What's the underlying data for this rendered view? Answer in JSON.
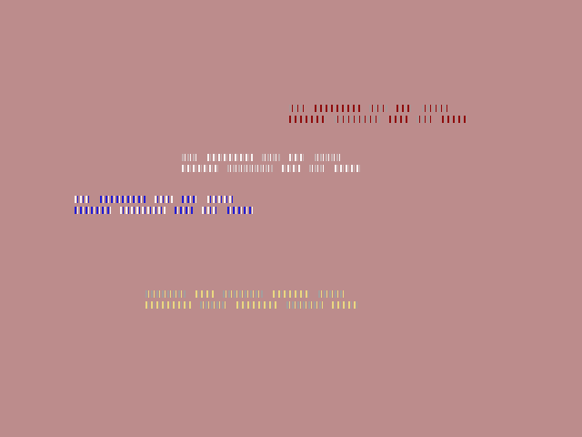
{
  "background_color": "#bc8c8c",
  "bands": [
    {
      "color": "#8b0000",
      "secondary": "#a89898"
    },
    {
      "color": "#ffffff",
      "secondary": "#c8b4b4"
    },
    {
      "color": "#1010e0",
      "secondary": "#ffffff"
    },
    {
      "color": "#f0e080",
      "secondary": "#a0a0a0"
    }
  ]
}
